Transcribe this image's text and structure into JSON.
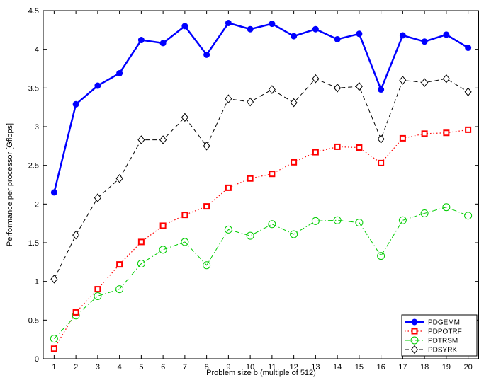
{
  "chart_data": {
    "type": "line",
    "title": "",
    "xlabel": "Problem size b (multiple of 512)",
    "ylabel": "Performance per processor [Gflops]",
    "xlim": [
      0.5,
      20.5
    ],
    "ylim": [
      0,
      4.5
    ],
    "x": [
      1,
      2,
      3,
      4,
      5,
      6,
      7,
      8,
      9,
      10,
      11,
      12,
      13,
      14,
      15,
      16,
      17,
      18,
      19,
      20
    ],
    "x_ticks": [
      "1",
      "2",
      "3",
      "4",
      "5",
      "6",
      "7",
      "8",
      "9",
      "10",
      "11",
      "12",
      "13",
      "14",
      "15",
      "16",
      "17",
      "18",
      "19",
      "20"
    ],
    "y_ticks": [
      "0",
      "0.5",
      "1",
      "1.5",
      "2",
      "2.5",
      "3",
      "3.5",
      "4",
      "4.5"
    ],
    "y_tick_values": [
      0,
      0.5,
      1,
      1.5,
      2,
      2.5,
      3,
      3.5,
      4,
      4.5
    ],
    "grid": false,
    "legend_position": "bottom-right",
    "series": [
      {
        "name": "PDGEMM",
        "color": "#0000ff",
        "line_style": "solid",
        "marker": "filled-circle",
        "values": [
          2.15,
          3.29,
          3.53,
          3.69,
          4.12,
          4.08,
          4.3,
          3.93,
          4.34,
          4.26,
          4.33,
          4.17,
          4.26,
          4.13,
          4.2,
          3.48,
          4.18,
          4.1,
          4.19,
          4.02
        ]
      },
      {
        "name": "PDPOTRF",
        "color": "#ff0000",
        "line_style": "dotted",
        "marker": "square",
        "values": [
          0.13,
          0.6,
          0.9,
          1.22,
          1.51,
          1.72,
          1.86,
          1.97,
          2.21,
          2.33,
          2.39,
          2.54,
          2.67,
          2.74,
          2.73,
          2.53,
          2.85,
          2.91,
          2.92,
          2.96
        ]
      },
      {
        "name": "PDTRSM",
        "color": "#00cc00",
        "line_style": "dash-dot",
        "marker": "open-circle",
        "values": [
          0.26,
          0.56,
          0.81,
          0.9,
          1.23,
          1.41,
          1.51,
          1.21,
          1.67,
          1.59,
          1.74,
          1.61,
          1.78,
          1.79,
          1.76,
          1.33,
          1.79,
          1.88,
          1.96,
          1.85
        ]
      },
      {
        "name": "PDSYRK",
        "color": "#000000",
        "line_style": "dashed",
        "marker": "open-diamond",
        "values": [
          1.03,
          1.6,
          2.08,
          2.33,
          2.83,
          2.83,
          3.12,
          2.75,
          3.36,
          3.32,
          3.48,
          3.31,
          3.62,
          3.5,
          3.52,
          2.84,
          3.6,
          3.57,
          3.62,
          3.45
        ]
      }
    ]
  }
}
